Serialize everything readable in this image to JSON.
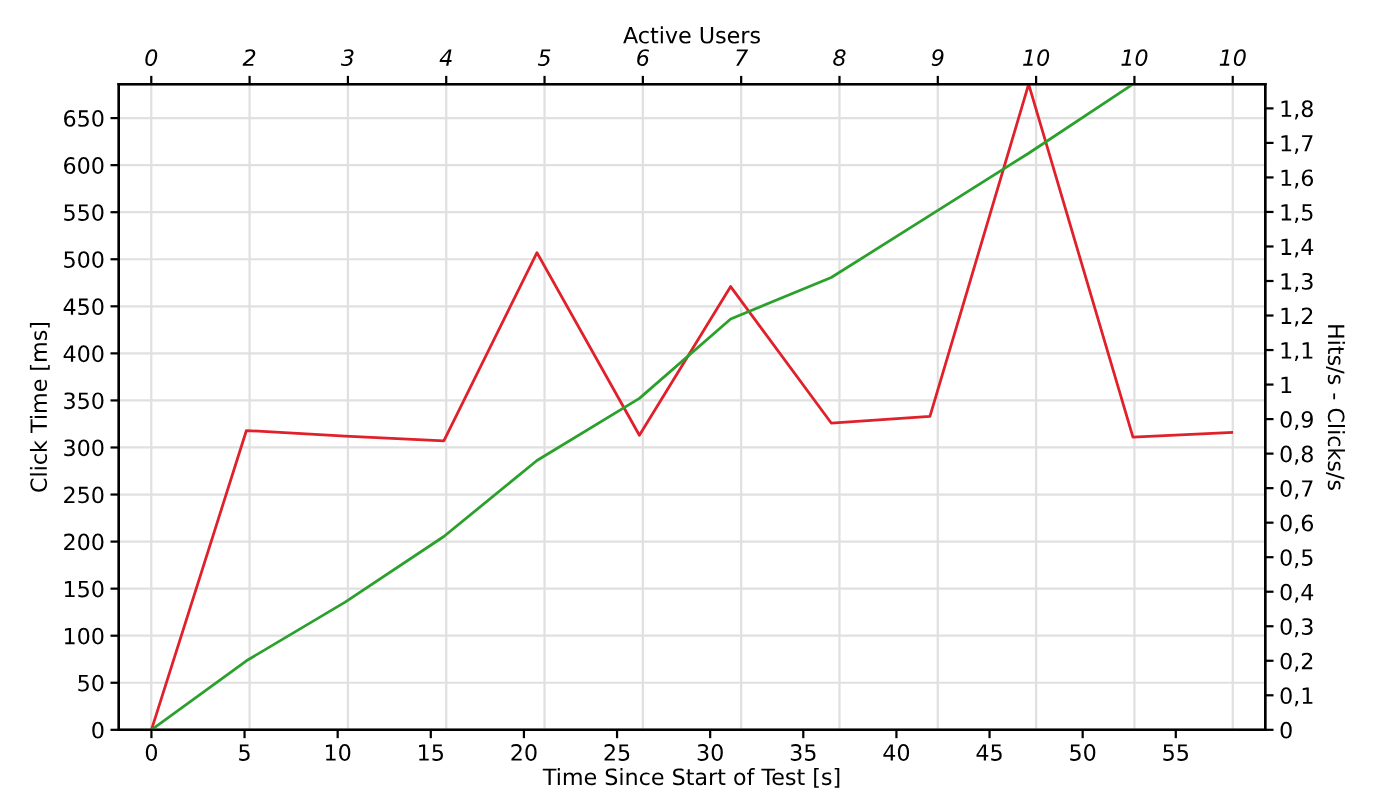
{
  "chart_data": {
    "type": "line",
    "xlabel": "Time Since Start of Test [s]",
    "ylabel": "Click Time [ms]",
    "y2label": "Hits/s - Clicks/s",
    "x2label": "Active Users",
    "xlim": [
      -1.75,
      59.8
    ],
    "xticks": [
      0,
      5,
      10,
      15,
      20,
      25,
      30,
      35,
      40,
      45,
      50,
      55
    ],
    "annotations": [
      "0",
      "2",
      "3",
      "4",
      "5",
      "6",
      "7",
      "8",
      "9",
      "10",
      "10",
      "10"
    ],
    "ylim": [
      0,
      686
    ],
    "yticks": [
      0,
      50,
      100,
      150,
      200,
      250,
      300,
      350,
      400,
      450,
      500,
      550,
      600,
      650
    ],
    "y2lim": [
      0,
      1.87
    ],
    "y2ticks": [
      0,
      {
        "value": 0.1,
        "label": "0,1"
      },
      {
        "value": 0.2,
        "label": "0,2"
      },
      {
        "value": 0.3,
        "label": "0,3"
      },
      {
        "value": 0.4,
        "label": "0,4"
      },
      {
        "value": 0.5,
        "label": "0,5"
      },
      {
        "value": 0.6,
        "label": "0,6"
      },
      {
        "value": 0.7,
        "label": "0,7"
      },
      {
        "value": 0.8,
        "label": "0,8"
      },
      {
        "value": 0.9,
        "label": "0,9"
      },
      {
        "value": 1,
        "label": "1"
      },
      {
        "value": 1.1,
        "label": "1,1"
      },
      {
        "value": 1.2,
        "label": "1,2"
      },
      {
        "value": 1.3,
        "label": "1,3"
      },
      {
        "value": 1.4,
        "label": "1,4"
      },
      {
        "value": 1.5,
        "label": "1,5"
      },
      {
        "value": 1.6,
        "label": "1,6"
      },
      {
        "value": 1.7,
        "label": "1,7"
      },
      {
        "value": 1.8,
        "label": "1,8"
      }
    ],
    "grid": true,
    "marker": "none",
    "line_style": "solid",
    "series": [
      {
        "color": "#e0202a",
        "x": [
          0,
          5.1,
          10.4,
          15.7,
          20.7,
          26.2,
          31.1,
          36.5,
          41.8,
          47.1,
          52.7,
          58.0
        ],
        "values": [
          0,
          318,
          312,
          307,
          507,
          313,
          471,
          326,
          333,
          686,
          311,
          316
        ]
      },
      {
        "color": "#2ca02c",
        "axis": "y2",
        "x": [
          0,
          5.1,
          10.4,
          15.7,
          20.7,
          26.2,
          31.1,
          36.5,
          41.8,
          47.1,
          52.7
        ],
        "values": [
          0,
          0.2,
          0.37,
          0.56,
          0.78,
          0.96,
          1.19,
          1.31,
          1.49,
          1.67,
          1.87
        ]
      }
    ]
  }
}
